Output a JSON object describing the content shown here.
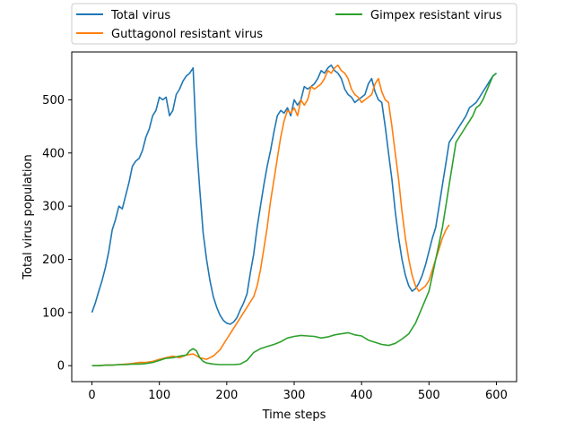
{
  "chart_data": {
    "type": "line",
    "title": "",
    "xlabel": "Time steps",
    "ylabel": "Total virus population",
    "xlim": [
      -30,
      630
    ],
    "ylim": [
      -30,
      590
    ],
    "xticks": [
      0,
      100,
      200,
      300,
      400,
      500,
      600
    ],
    "yticks": [
      0,
      100,
      200,
      300,
      400,
      500
    ],
    "grid": false,
    "legend_position": "top (above plot, two columns)",
    "series": [
      {
        "name": "Total virus",
        "color": "#1f77b4",
        "x": [
          0,
          5,
          10,
          15,
          20,
          25,
          30,
          35,
          40,
          45,
          50,
          55,
          60,
          65,
          70,
          75,
          80,
          85,
          90,
          95,
          100,
          105,
          110,
          115,
          120,
          125,
          130,
          135,
          140,
          145,
          150,
          155,
          160,
          165,
          170,
          175,
          180,
          185,
          190,
          195,
          200,
          205,
          210,
          215,
          220,
          225,
          230,
          235,
          240,
          245,
          250,
          255,
          260,
          265,
          270,
          275,
          280,
          285,
          290,
          295,
          300,
          305,
          310,
          315,
          320,
          325,
          330,
          335,
          340,
          345,
          350,
          355,
          360,
          365,
          370,
          375,
          380,
          385,
          390,
          395,
          400,
          405,
          410,
          415,
          420,
          425,
          430,
          435,
          440,
          445,
          450,
          455,
          460,
          465,
          470,
          475,
          480,
          485,
          490,
          495,
          500,
          505,
          510,
          515,
          520,
          525,
          530,
          535,
          540,
          545,
          550,
          555,
          560,
          565,
          570,
          575,
          580,
          585,
          590,
          595,
          600
        ],
        "y": [
          100,
          118,
          140,
          160,
          185,
          215,
          255,
          275,
          300,
          295,
          320,
          345,
          375,
          385,
          390,
          405,
          430,
          445,
          470,
          480,
          505,
          500,
          505,
          470,
          480,
          510,
          520,
          535,
          545,
          550,
          560,
          420,
          330,
          250,
          200,
          160,
          130,
          110,
          95,
          85,
          80,
          78,
          82,
          90,
          105,
          118,
          135,
          175,
          210,
          260,
          300,
          340,
          375,
          405,
          440,
          470,
          480,
          475,
          485,
          470,
          500,
          490,
          500,
          525,
          520,
          525,
          530,
          540,
          555,
          550,
          560,
          565,
          555,
          550,
          540,
          520,
          510,
          505,
          495,
          500,
          505,
          510,
          530,
          540,
          515,
          500,
          495,
          450,
          400,
          350,
          290,
          240,
          200,
          170,
          150,
          140,
          145,
          155,
          170,
          190,
          215,
          240,
          260,
          300,
          340,
          380,
          420,
          430,
          440,
          450,
          460,
          470,
          485,
          490,
          495,
          505,
          515,
          525,
          535,
          545,
          550
        ]
      },
      {
        "name": "Guttagonol resistant virus",
        "color": "#ff7f0e",
        "x": [
          0,
          10,
          20,
          30,
          40,
          50,
          60,
          70,
          80,
          90,
          100,
          110,
          120,
          130,
          140,
          150,
          160,
          170,
          180,
          190,
          200,
          210,
          220,
          230,
          240,
          245,
          250,
          255,
          260,
          265,
          270,
          275,
          280,
          285,
          290,
          295,
          300,
          305,
          310,
          315,
          320,
          325,
          330,
          335,
          340,
          345,
          350,
          355,
          360,
          365,
          370,
          375,
          380,
          385,
          390,
          395,
          400,
          405,
          410,
          415,
          420,
          425,
          430,
          435,
          440,
          445,
          450,
          455,
          460,
          465,
          470,
          475,
          480,
          485,
          490,
          495,
          500,
          505,
          510,
          515,
          520,
          525,
          530
        ],
        "y": [
          0,
          0,
          1,
          1,
          2,
          3,
          4,
          6,
          6,
          8,
          12,
          15,
          18,
          15,
          20,
          22,
          15,
          12,
          18,
          30,
          50,
          70,
          90,
          110,
          130,
          150,
          180,
          220,
          260,
          310,
          350,
          390,
          430,
          460,
          480,
          475,
          485,
          470,
          500,
          490,
          500,
          525,
          520,
          525,
          530,
          540,
          555,
          550,
          560,
          565,
          555,
          550,
          540,
          520,
          510,
          505,
          495,
          500,
          505,
          510,
          530,
          540,
          515,
          500,
          495,
          450,
          400,
          350,
          290,
          240,
          200,
          170,
          150,
          140,
          145,
          150,
          160,
          180,
          200,
          220,
          240,
          255,
          265
        ]
      },
      {
        "name": "Gimpex resistant virus",
        "color": "#2ca02c",
        "x": [
          0,
          10,
          20,
          30,
          40,
          50,
          60,
          70,
          80,
          90,
          100,
          110,
          120,
          130,
          140,
          145,
          150,
          155,
          160,
          165,
          170,
          180,
          190,
          200,
          210,
          220,
          230,
          240,
          250,
          260,
          270,
          280,
          290,
          300,
          310,
          320,
          330,
          340,
          350,
          360,
          370,
          380,
          390,
          400,
          410,
          420,
          430,
          440,
          450,
          460,
          470,
          480,
          490,
          500,
          505,
          510,
          515,
          520,
          525,
          530,
          535,
          540,
          545,
          550,
          555,
          560,
          565,
          570,
          575,
          580,
          585,
          590,
          595,
          600
        ],
        "y": [
          0,
          0,
          1,
          1,
          2,
          2,
          3,
          3,
          4,
          6,
          10,
          14,
          15,
          18,
          20,
          28,
          32,
          28,
          15,
          8,
          5,
          3,
          2,
          2,
          2,
          3,
          10,
          25,
          32,
          36,
          40,
          45,
          52,
          55,
          57,
          56,
          55,
          52,
          54,
          58,
          60,
          62,
          58,
          56,
          48,
          44,
          40,
          38,
          42,
          50,
          60,
          80,
          110,
          140,
          170,
          200,
          230,
          260,
          300,
          340,
          380,
          420,
          430,
          440,
          450,
          460,
          470,
          485,
          490,
          500,
          515,
          530,
          545,
          550
        ]
      }
    ]
  }
}
